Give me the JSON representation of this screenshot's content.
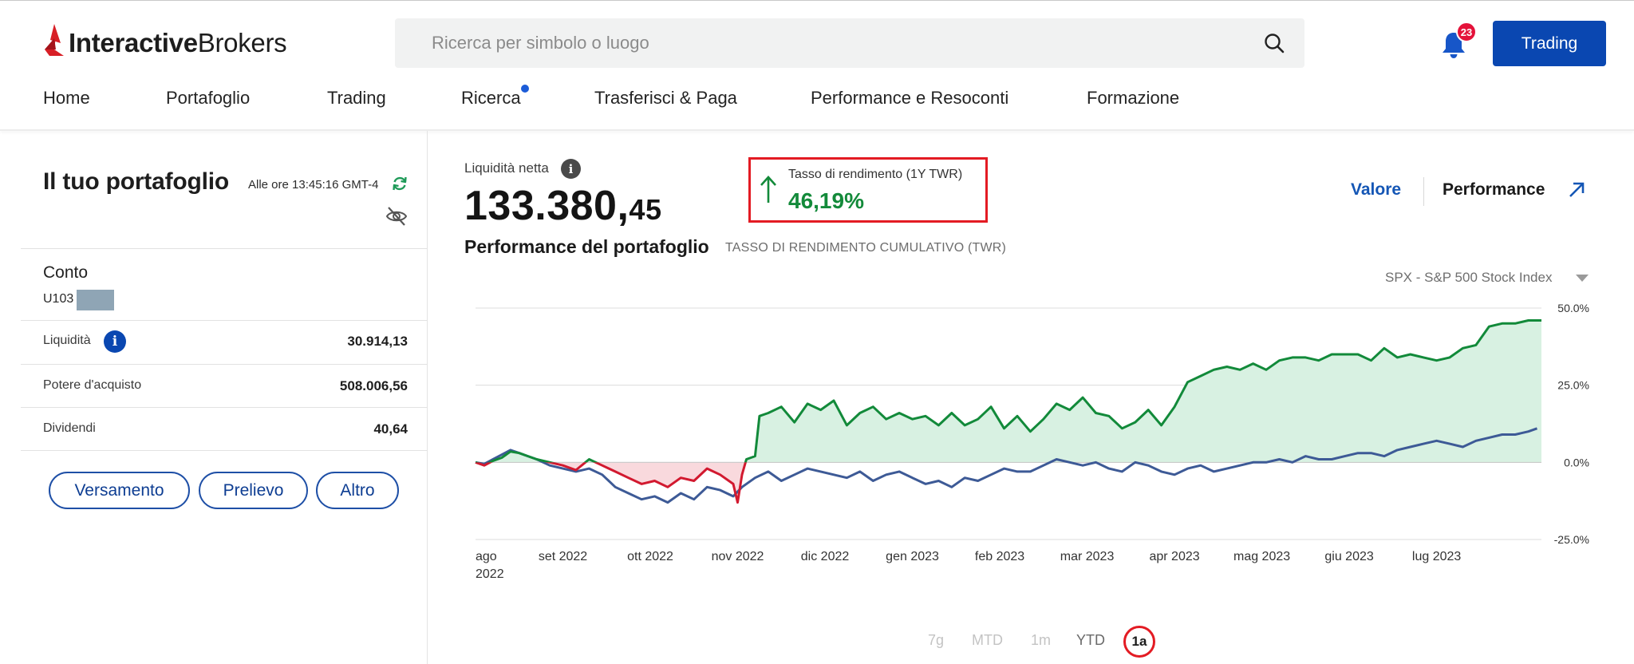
{
  "app": {
    "brand_bold": "Interactive",
    "brand_rest": "Brokers",
    "search_placeholder": "Ricerca per simbolo o luogo",
    "notification_count": "23",
    "trading_button": "Trading",
    "brand_color": "#d81f26",
    "accent_color": "#0a47b1"
  },
  "nav": {
    "items": [
      {
        "label": "Home"
      },
      {
        "label": "Portafoglio"
      },
      {
        "label": "Trading"
      },
      {
        "label": "Ricerca",
        "has_dot": true
      },
      {
        "label": "Trasferisci & Paga"
      },
      {
        "label": "Performance e Resoconti"
      },
      {
        "label": "Formazione"
      }
    ]
  },
  "portfolio": {
    "title": "Il tuo portafoglio",
    "timestamp": "Alle ore 13:45:16 GMT-4",
    "account_label": "Conto",
    "account_id_prefix": "U103",
    "rows": [
      {
        "label": "Liquidità",
        "value": "30.914,13"
      },
      {
        "label": "Potere d'acquisto",
        "value": "508.006,56"
      },
      {
        "label": "Dividendi",
        "value": "40,64"
      }
    ],
    "buttons": {
      "deposit": "Versamento",
      "withdraw": "Prelievo",
      "other": "Altro"
    }
  },
  "summary": {
    "net_liq_label": "Liquidità netta",
    "net_liq_int": "133.380,",
    "net_liq_dec": "45",
    "twr_label": "Tasso di rendimento (1Y TWR)",
    "twr_value": "46,19%",
    "view_value": "Valore",
    "view_performance": "Performance"
  },
  "chart_header": {
    "title": "Performance del portafoglio",
    "subtitle": "TASSO DI RENDIMENTO CUMULATIVO (TWR)",
    "benchmark": "SPX - S&P 500 Stock Index"
  },
  "ranges": {
    "r7g": "7g",
    "mtd": "MTD",
    "r1m": "1m",
    "ytd": "YTD",
    "r1a": "1a",
    "selected": "1a"
  },
  "chart_data": {
    "type": "line",
    "title": "",
    "xlabel": "",
    "ylabel": "",
    "ylim": [
      -25,
      50
    ],
    "y_ticks": [
      "50.0%",
      "25.0%",
      "0.0%",
      "-25.0%"
    ],
    "y_tick_values": [
      50,
      25,
      0,
      -25
    ],
    "x_ticks": [
      "ago 2022",
      "set 2022",
      "ott 2022",
      "nov 2022",
      "dic 2022",
      "gen 2023",
      "feb 2023",
      "mar 2023",
      "apr 2023",
      "mag 2023",
      "giu 2023",
      "lug 2023"
    ],
    "x_tick_values": [
      0,
      1,
      2,
      3,
      4,
      5,
      6,
      7,
      8,
      9,
      10,
      11
    ],
    "x_max": 12.2,
    "grid": true,
    "series": [
      {
        "color": "#128a3a",
        "negative_color": "#d2192f",
        "fill_positive": "#d8f1e2",
        "fill_negative": "#f9d9dd",
        "x": [
          0,
          0.1,
          0.2,
          0.3,
          0.4,
          0.5,
          0.6,
          0.7,
          0.85,
          1.0,
          1.15,
          1.3,
          1.45,
          1.6,
          1.75,
          1.9,
          2.05,
          2.2,
          2.35,
          2.5,
          2.65,
          2.8,
          2.95,
          3.0,
          3.05,
          3.1,
          3.2,
          3.25,
          3.35,
          3.5,
          3.65,
          3.8,
          3.95,
          4.1,
          4.25,
          4.4,
          4.55,
          4.7,
          4.85,
          5.0,
          5.15,
          5.3,
          5.45,
          5.6,
          5.75,
          5.9,
          6.05,
          6.2,
          6.35,
          6.5,
          6.65,
          6.8,
          6.95,
          7.1,
          7.25,
          7.4,
          7.55,
          7.7,
          7.85,
          8.0,
          8.15,
          8.3,
          8.45,
          8.6,
          8.75,
          8.9,
          9.05,
          9.2,
          9.35,
          9.5,
          9.65,
          9.8,
          9.95,
          10.1,
          10.25,
          10.4,
          10.55,
          10.7,
          10.85,
          11.0,
          11.15,
          11.3,
          11.45,
          11.6,
          11.75,
          11.9,
          12.05,
          12.2
        ],
        "values": [
          0,
          -1,
          0.5,
          1.5,
          3.5,
          3,
          2,
          1,
          0,
          -1,
          -2.5,
          1,
          -1,
          -3,
          -5,
          -7,
          -6,
          -8,
          -5,
          -6,
          -2,
          -4,
          -7,
          -13,
          -4,
          1,
          2,
          15,
          16,
          18,
          13,
          19,
          17,
          20,
          12,
          16,
          18,
          14,
          16,
          14,
          15,
          12,
          16,
          12,
          14,
          18,
          11,
          15,
          10,
          14,
          19,
          17,
          21,
          16,
          15,
          11,
          13,
          17,
          12,
          18,
          26,
          28,
          30,
          31,
          30,
          32,
          30,
          33,
          34,
          34,
          33,
          35,
          35,
          35,
          33,
          37,
          34,
          35,
          34,
          33,
          34,
          37,
          38,
          44,
          45,
          45,
          46,
          46
        ]
      },
      {
        "color": "#3d5a96",
        "x": [
          0,
          0.1,
          0.2,
          0.3,
          0.4,
          0.5,
          0.6,
          0.7,
          0.85,
          1.0,
          1.15,
          1.3,
          1.45,
          1.6,
          1.75,
          1.9,
          2.05,
          2.2,
          2.35,
          2.5,
          2.65,
          2.8,
          2.95,
          3.05,
          3.2,
          3.35,
          3.5,
          3.65,
          3.8,
          3.95,
          4.1,
          4.25,
          4.4,
          4.55,
          4.7,
          4.85,
          5.0,
          5.15,
          5.3,
          5.45,
          5.6,
          5.75,
          5.9,
          6.05,
          6.2,
          6.35,
          6.5,
          6.65,
          6.8,
          6.95,
          7.1,
          7.25,
          7.4,
          7.55,
          7.7,
          7.85,
          8.0,
          8.15,
          8.3,
          8.45,
          8.6,
          8.75,
          8.9,
          9.05,
          9.2,
          9.35,
          9.5,
          9.65,
          9.8,
          9.95,
          10.1,
          10.25,
          10.4,
          10.55,
          10.7,
          10.85,
          11.0,
          11.15,
          11.3,
          11.45,
          11.6,
          11.75,
          11.9,
          12.05,
          12.15
        ],
        "values": [
          0,
          -0.5,
          1,
          2.5,
          4,
          3,
          2,
          1,
          -1,
          -2,
          -3,
          -2,
          -4,
          -8,
          -10,
          -12,
          -11,
          -13,
          -10,
          -12,
          -8,
          -9,
          -11,
          -8,
          -5,
          -3,
          -6,
          -4,
          -2,
          -3,
          -4,
          -5,
          -3,
          -6,
          -4,
          -3,
          -5,
          -7,
          -6,
          -8,
          -5,
          -6,
          -4,
          -2,
          -3,
          -3,
          -1,
          1,
          0,
          -1,
          0,
          -2,
          -3,
          0,
          -1,
          -3,
          -4,
          -2,
          -1,
          -3,
          -2,
          -1,
          0,
          0,
          1,
          0,
          2,
          1,
          1,
          2,
          3,
          3,
          2,
          4,
          5,
          6,
          7,
          6,
          5,
          7,
          8,
          9,
          9,
          10,
          11
        ]
      }
    ]
  }
}
